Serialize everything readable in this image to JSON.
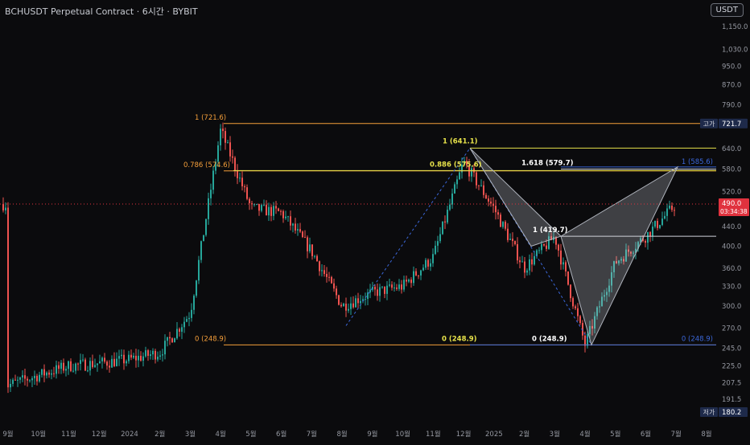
{
  "header": {
    "title": "BCHUSDT Perpetual Contract · 6시간 · BYBIT",
    "currency_button": "USDT"
  },
  "colors": {
    "background": "#0b0b0d",
    "candle_up": "#26a69a",
    "candle_down": "#ef5350",
    "fib_left": "#f59f3a",
    "fib_mid": "#e7e24a",
    "fib_harmonic": "#ffffff",
    "fib_right": "#3b67d9",
    "last_price_tag": "#e0323e",
    "hl_tag": "#1e2a4a"
  },
  "chart_data": {
    "type": "candlestick",
    "y_scale": "log",
    "ylim": [
      172,
      1210
    ],
    "y_ticks": [
      "1,150.0",
      "1,030.0",
      "950.0",
      "870.0",
      "790.0",
      "640.0",
      "580.0",
      "520.0",
      "440.0",
      "400.0",
      "360.0",
      "330.0",
      "300.0",
      "270.0",
      "245.0",
      "225.0",
      "207.5",
      "191.5"
    ],
    "x_ticks": [
      "9월",
      "10월",
      "11월",
      "12월",
      "2024",
      "2월",
      "3월",
      "4월",
      "5월",
      "6월",
      "7월",
      "8월",
      "9월",
      "10월",
      "11월",
      "12월",
      "2025",
      "2월",
      "3월",
      "4월",
      "5월",
      "6월",
      "7월",
      "8월"
    ],
    "price_path": [
      [
        "9월",
        205
      ],
      [
        "10월",
        215
      ],
      [
        "11월",
        225
      ],
      [
        "12월",
        228
      ],
      [
        "2024",
        232
      ],
      [
        "2월",
        240
      ],
      [
        "3월",
        290
      ],
      [
        "4월",
        700
      ],
      [
        "5월",
        480
      ],
      [
        "6월",
        470
      ],
      [
        "7월",
        390
      ],
      [
        "8월",
        300
      ],
      [
        "9월",
        320
      ],
      [
        "10월",
        330
      ],
      [
        "11월",
        380
      ],
      [
        "12월",
        600
      ],
      [
        "2025",
        480
      ],
      [
        "2월",
        360
      ],
      [
        "3월",
        419.7
      ],
      [
        "4월",
        248.9
      ],
      [
        "5월",
        370
      ],
      [
        "6월",
        420
      ],
      [
        "7월",
        490
      ]
    ],
    "horizontal_levels": [
      {
        "label": "1 (721.6)",
        "value": 721.6,
        "group": "left"
      },
      {
        "label": "0.786 (574.6)",
        "value": 574.6,
        "group": "left"
      },
      {
        "label": "0 (248.9)",
        "value": 248.9,
        "group": "left"
      },
      {
        "label": "1 (641.1)",
        "value": 641.1,
        "group": "mid"
      },
      {
        "label": "0.886 (575.6)",
        "value": 575.6,
        "group": "mid"
      },
      {
        "label": "0 (248.9)",
        "value": 248.9,
        "group": "mid"
      },
      {
        "label": "1.618 (579.7)",
        "value": 579.7,
        "group": "harmonic"
      },
      {
        "label": "1 (419.7)",
        "value": 419.7,
        "group": "harmonic"
      },
      {
        "label": "0 (248.9)",
        "value": 248.9,
        "group": "harmonic"
      },
      {
        "label": "1 (585.6)",
        "value": 585.6,
        "group": "right"
      },
      {
        "label": "0 (248.9)",
        "value": 248.9,
        "group": "right"
      }
    ],
    "price_tags": {
      "high_label": "고가",
      "high_value": "721.7",
      "last_value": "490.0",
      "countdown": "03:34:38",
      "low_label": "저가",
      "low_value": "180.2"
    }
  }
}
